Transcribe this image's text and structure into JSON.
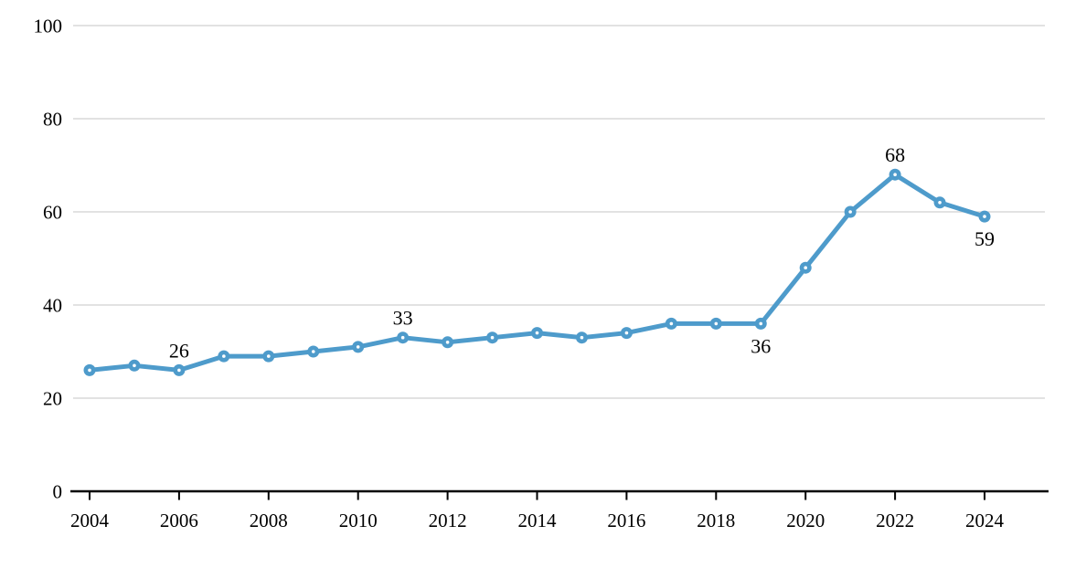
{
  "chart_data": {
    "type": "line",
    "title": "",
    "xlabel": "",
    "ylabel": "",
    "x": [
      2004,
      2005,
      2006,
      2007,
      2008,
      2009,
      2010,
      2011,
      2012,
      2013,
      2014,
      2015,
      2016,
      2017,
      2018,
      2019,
      2020,
      2021,
      2022,
      2023,
      2024
    ],
    "values": [
      26,
      27,
      26,
      29,
      29,
      30,
      31,
      33,
      32,
      33,
      34,
      33,
      34,
      36,
      36,
      36,
      48,
      60,
      68,
      62,
      59
    ],
    "ylim": [
      0,
      100
    ],
    "yticks": [
      0,
      20,
      40,
      60,
      80,
      100
    ],
    "xtick_labels": [
      "2004",
      "2006",
      "2008",
      "2010",
      "2012",
      "2014",
      "2016",
      "2018",
      "2020",
      "2022",
      "2024"
    ],
    "grid": "horizontal-only",
    "legend": "none",
    "marker": "circle-with-white-center",
    "annotations": [
      {
        "x": 2006,
        "value": 26,
        "label": "26",
        "placement": "above"
      },
      {
        "x": 2011,
        "value": 33,
        "label": "33",
        "placement": "above"
      },
      {
        "x": 2019,
        "value": 36,
        "label": "36",
        "placement": "below"
      },
      {
        "x": 2022,
        "value": 68,
        "label": "68",
        "placement": "above"
      },
      {
        "x": 2024,
        "value": 59,
        "label": "59",
        "placement": "below"
      }
    ],
    "colors": {
      "line": "#4E9BCB",
      "marker": "#4E9BCB",
      "marker_center": "#FFFFFF",
      "grid": "#D9D9D9",
      "axis": "#000000",
      "text": "#000000",
      "background": "#FFFFFF"
    }
  }
}
